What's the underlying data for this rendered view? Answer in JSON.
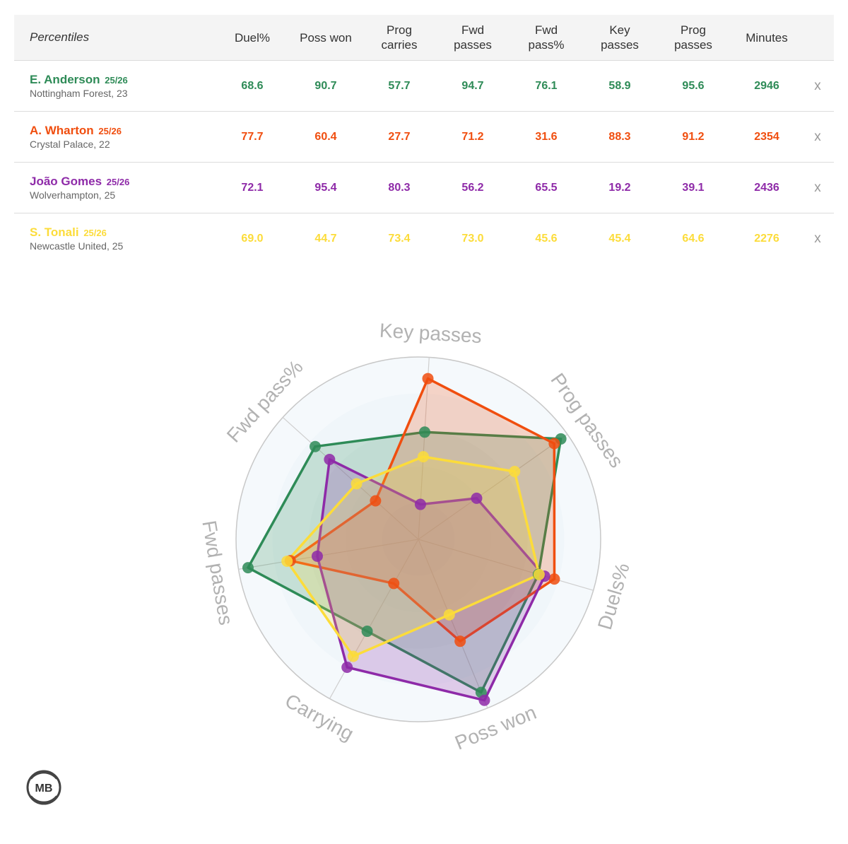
{
  "table": {
    "header_label": "Percentiles",
    "columns": [
      [
        "Duel%"
      ],
      [
        "Poss won"
      ],
      [
        "Prog",
        "carries"
      ],
      [
        "Fwd",
        "passes"
      ],
      [
        "Fwd",
        "pass%"
      ],
      [
        "Key",
        "passes"
      ],
      [
        "Prog",
        "passes"
      ],
      [
        "Minutes"
      ]
    ],
    "remove_label": "x"
  },
  "players": [
    {
      "name": "E. Anderson",
      "season": "25/26",
      "club": "Nottingham Forest, 23",
      "color": "#2e8b57",
      "values": [
        "68.6",
        "90.7",
        "57.7",
        "94.7",
        "76.1",
        "58.9",
        "95.6",
        "2946"
      ]
    },
    {
      "name": "A. Wharton",
      "season": "25/26",
      "club": "Crystal Palace, 22",
      "color": "#f04e0f",
      "values": [
        "77.7",
        "60.4",
        "27.7",
        "71.2",
        "31.6",
        "88.3",
        "91.2",
        "2354"
      ]
    },
    {
      "name": "João Gomes",
      "season": "25/26",
      "club": "Wolverhampton, 25",
      "color": "#8e2aa8",
      "values": [
        "72.1",
        "95.4",
        "80.3",
        "56.2",
        "65.5",
        "19.2",
        "39.1",
        "2436"
      ]
    },
    {
      "name": "S. Tonali",
      "season": "25/26",
      "club": "Newcastle United, 25",
      "color": "#fcdc3a",
      "values": [
        "69.0",
        "44.7",
        "73.4",
        "73.0",
        "45.6",
        "45.4",
        "64.6",
        "2276"
      ]
    }
  ],
  "chart_data": {
    "type": "radar",
    "axes": [
      "Key passes",
      "Prog passes",
      "Duels%",
      "Poss won",
      "Carrying",
      "Fwd passes",
      "Fwd pass%"
    ],
    "rlim": [
      0,
      100
    ],
    "series": [
      {
        "name": "E. Anderson",
        "color": "#2e8b57",
        "values": [
          58.9,
          95.6,
          68.6,
          90.7,
          57.7,
          94.7,
          76.1
        ]
      },
      {
        "name": "A. Wharton",
        "color": "#f04e0f",
        "values": [
          88.3,
          91.2,
          77.7,
          60.4,
          27.7,
          71.2,
          31.6
        ]
      },
      {
        "name": "João Gomes",
        "color": "#8e2aa8",
        "values": [
          19.2,
          39.1,
          72.1,
          95.4,
          80.3,
          56.2,
          65.5
        ]
      },
      {
        "name": "S. Tonali",
        "color": "#fcdc3a",
        "values": [
          45.4,
          64.6,
          69.0,
          44.7,
          73.4,
          73.0,
          45.6
        ]
      }
    ]
  },
  "logo": {
    "text": "MB"
  }
}
